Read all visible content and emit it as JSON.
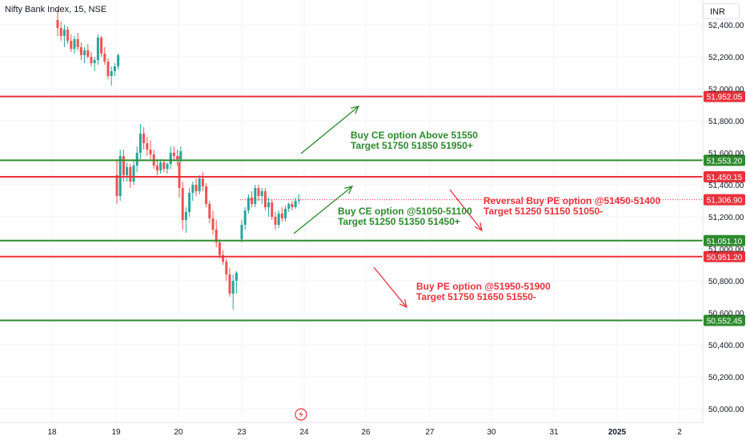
{
  "header": {
    "symbol_title": "Nifty Bank Index, 15, NSE",
    "currency": "INR"
  },
  "colors": {
    "support": "#2e8b2e",
    "resistance": "#e8323c",
    "current": "#e8323c",
    "candle_up": "#26a69a",
    "candle_down": "#ef5350",
    "annotation_green": "#2b8a2b",
    "annotation_red": "#e8323c",
    "grid": "#f0f3fa"
  },
  "chart_data": {
    "type": "candlestick",
    "ylim": [
      49950,
      52500
    ],
    "y_ticks": [
      52400,
      52200,
      52000,
      51800,
      51600,
      51400,
      51200,
      51000,
      50800,
      50600,
      50400,
      50200,
      50000
    ],
    "y_tick_labels": [
      "52,400.00",
      "52,200.00",
      "52,000.00",
      "51,800.00",
      "51,600.00",
      "51,400.00",
      "51,200.00",
      "51,000.00",
      "50,800.00",
      "50,600.00",
      "50,400.00",
      "50,200.00",
      "50,000.00"
    ],
    "x_ticks": [
      "18",
      "19",
      "20",
      "23",
      "24",
      "26",
      "27",
      "30",
      "31",
      "2025",
      "2"
    ],
    "levels": [
      {
        "value": 51952.05,
        "label": "51,952.05",
        "kind": "resistance"
      },
      {
        "value": 51553.2,
        "label": "51,553.20",
        "kind": "support"
      },
      {
        "value": 51450.15,
        "label": "51,450.15",
        "kind": "resistance"
      },
      {
        "value": 51051.1,
        "label": "51,051.10",
        "kind": "support"
      },
      {
        "value": 50951.2,
        "label": "50,951.20",
        "kind": "resistance"
      },
      {
        "value": 50552.45,
        "label": "50,552.45",
        "kind": "support"
      }
    ],
    "last_price": {
      "value": 51306.9,
      "label": "51,306.90"
    },
    "series": [
      {
        "segment": "18-19",
        "ohlc": [
          [
            52430,
            52500,
            52330,
            52380
          ],
          [
            52380,
            52420,
            52300,
            52330
          ],
          [
            52330,
            52400,
            52260,
            52370
          ],
          [
            52370,
            52390,
            52280,
            52300
          ],
          [
            52300,
            52340,
            52230,
            52250
          ],
          [
            52250,
            52330,
            52220,
            52310
          ],
          [
            52310,
            52350,
            52240,
            52260
          ],
          [
            52260,
            52290,
            52180,
            52210
          ],
          [
            52210,
            52260,
            52160,
            52240
          ],
          [
            52240,
            52280,
            52190,
            52200
          ],
          [
            52200,
            52230,
            52140,
            52160
          ],
          [
            52160,
            52200,
            52110,
            52180
          ],
          [
            52180,
            52340,
            52150,
            52320
          ],
          [
            52320,
            52330,
            52200,
            52220
          ],
          [
            52220,
            52260,
            52150,
            52170
          ],
          [
            52170,
            52190,
            52060,
            52080
          ],
          [
            52080,
            52140,
            52020,
            52110
          ],
          [
            52110,
            52160,
            52080,
            52140
          ],
          [
            52140,
            52220,
            52120,
            52210
          ]
        ]
      },
      {
        "segment": "19-20",
        "ohlc": [
          [
            51460,
            51560,
            51280,
            51330
          ],
          [
            51330,
            51620,
            51300,
            51580
          ],
          [
            51580,
            51620,
            51420,
            51460
          ],
          [
            51460,
            51540,
            51420,
            51510
          ],
          [
            51510,
            51530,
            51380,
            51420
          ],
          [
            51420,
            51560,
            51400,
            51520
          ],
          [
            51520,
            51640,
            51480,
            51600
          ],
          [
            51600,
            51780,
            51560,
            51720
          ],
          [
            51720,
            51760,
            51620,
            51660
          ],
          [
            51660,
            51700,
            51580,
            51620
          ],
          [
            51620,
            51680,
            51560,
            51590
          ],
          [
            51590,
            51620,
            51500,
            51520
          ],
          [
            51520,
            51560,
            51460,
            51490
          ],
          [
            51490,
            51560,
            51470,
            51540
          ],
          [
            51540,
            51560,
            51480,
            51500
          ],
          [
            51500,
            51540,
            51470,
            51530
          ],
          [
            51530,
            51640,
            51500,
            51600
          ],
          [
            51600,
            51640,
            51550,
            51580
          ],
          [
            51580,
            51620,
            51520,
            51560
          ],
          [
            51560,
            51640,
            51540,
            51610
          ]
        ]
      },
      {
        "segment": "20-23",
        "ohlc": [
          [
            51540,
            51580,
            51320,
            51380
          ],
          [
            51380,
            51420,
            51120,
            51180
          ],
          [
            51180,
            51260,
            51100,
            51230
          ],
          [
            51230,
            51380,
            51200,
            51350
          ],
          [
            51350,
            51420,
            51300,
            51400
          ],
          [
            51400,
            51440,
            51330,
            51360
          ],
          [
            51360,
            51460,
            51340,
            51440
          ],
          [
            51440,
            51480,
            51360,
            51390
          ],
          [
            51390,
            51410,
            51260,
            51280
          ],
          [
            51280,
            51300,
            51160,
            51190
          ],
          [
            51190,
            51240,
            51090,
            51120
          ],
          [
            51120,
            51180,
            51010,
            51040
          ],
          [
            51040,
            51060,
            50940,
            50960
          ],
          [
            50960,
            50990,
            50900,
            50920
          ],
          [
            50920,
            50940,
            50800,
            50840
          ],
          [
            50840,
            50880,
            50700,
            50720
          ],
          [
            50720,
            50840,
            50620,
            50800
          ],
          [
            50800,
            50860,
            50720,
            50850
          ]
        ]
      },
      {
        "segment": "23-24",
        "ohlc": [
          [
            51060,
            51180,
            51040,
            51150
          ],
          [
            51150,
            51260,
            51120,
            51240
          ],
          [
            51240,
            51340,
            51220,
            51320
          ],
          [
            51320,
            51360,
            51260,
            51280
          ],
          [
            51280,
            51400,
            51260,
            51380
          ],
          [
            51380,
            51400,
            51300,
            51330
          ],
          [
            51330,
            51380,
            51280,
            51360
          ],
          [
            51360,
            51380,
            51240,
            51260
          ],
          [
            51260,
            51320,
            51200,
            51290
          ],
          [
            51290,
            51310,
            51180,
            51200
          ],
          [
            51200,
            51230,
            51120,
            51150
          ],
          [
            51150,
            51240,
            51130,
            51220
          ],
          [
            51220,
            51260,
            51170,
            51190
          ],
          [
            51190,
            51270,
            51170,
            51250
          ],
          [
            51250,
            51290,
            51230,
            51280
          ],
          [
            51280,
            51300,
            51240,
            51260
          ],
          [
            51260,
            51320,
            51250,
            51300
          ],
          [
            51300,
            51340,
            51280,
            51307
          ]
        ]
      }
    ]
  },
  "annotations": [
    {
      "line1": "Buy CE option Above 51550",
      "line2": "Target 51750 51850 51950+",
      "color": "green"
    },
    {
      "line1": "Buy CE option @51050-51100",
      "line2": "Target 51250 51350 51450+",
      "color": "green"
    },
    {
      "line1": "Reversal Buy PE option @51450-51400",
      "line2": "Target 51250 51150 51050-",
      "color": "red"
    },
    {
      "line1": "Buy PE option @51950-51900",
      "line2": "Target 51750 51650 51550-",
      "color": "red"
    }
  ]
}
